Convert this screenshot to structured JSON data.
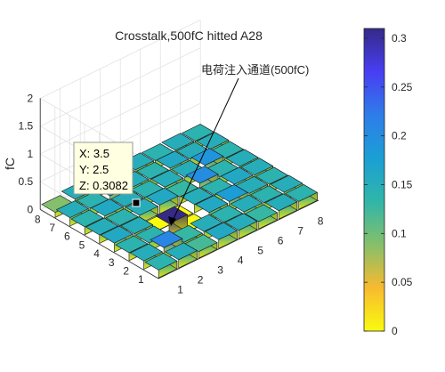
{
  "chart_data": {
    "type": "bar3",
    "title": "Crosstalk,500fC hitted A28",
    "zlabel": "fC",
    "x_ticks": [
      "1",
      "2",
      "3",
      "4",
      "5",
      "6",
      "7",
      "8"
    ],
    "y_ticks": [
      "1",
      "2",
      "3",
      "4",
      "5",
      "6",
      "7",
      "8"
    ],
    "z_ticks": [
      "0",
      "0.5",
      "1",
      "1.5",
      "2"
    ],
    "zlim": [
      0,
      2
    ],
    "annotation": "电荷注入通道(500fC)",
    "datatip": {
      "x": "X: 3.5",
      "y": "Y: 2.5",
      "z": "Z: 0.3082"
    },
    "colorbar": {
      "range": [
        0,
        0.31
      ],
      "ticks": [
        "0",
        "0.05",
        "0.1",
        "0.15",
        "0.2",
        "0.25",
        "0.3"
      ],
      "colormap": [
        "#f9fb0e",
        "#f8ba30",
        "#86bf6a",
        "#2fb6a8",
        "#1b9fd5",
        "#2e7de9",
        "#483ef3",
        "#352a87"
      ]
    },
    "values": [
      [
        0.14,
        0.15,
        0.12,
        0.16,
        0.15,
        0.13,
        0.15,
        0.14
      ],
      [
        0.15,
        0.21,
        0.13,
        0.15,
        0.14,
        0.15,
        0.14,
        0.15
      ],
      [
        0.14,
        0.14,
        0.31,
        0.0,
        0.16,
        0.18,
        0.15,
        0.14
      ],
      [
        0.16,
        0.15,
        0.0,
        0.0,
        0.15,
        0.14,
        0.16,
        0.15
      ],
      [
        0.15,
        0.14,
        0.15,
        0.16,
        0.13,
        0.2,
        0.14,
        0.15
      ],
      [
        0.14,
        0.16,
        0.15,
        0.14,
        0.15,
        0.15,
        0.19,
        0.14
      ],
      [
        0.15,
        0.14,
        0.19,
        0.15,
        0.14,
        0.16,
        0.15,
        0.15
      ],
      [
        0.09,
        0.15,
        0.14,
        0.16,
        0.15,
        0.14,
        0.15,
        0.14
      ]
    ]
  }
}
